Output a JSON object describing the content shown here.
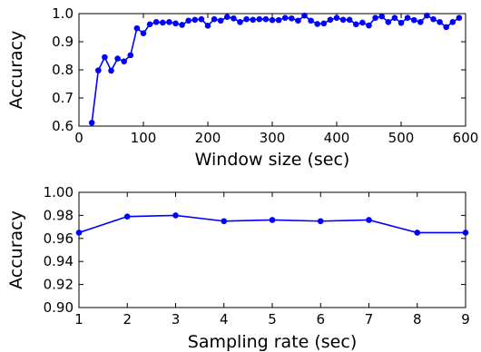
{
  "chart_data": [
    {
      "type": "line",
      "xlabel": "Window size (sec)",
      "ylabel": "Accuracy",
      "xlim": [
        0,
        600
      ],
      "ylim": [
        0.6,
        1.0
      ],
      "xticks": [
        "0",
        "100",
        "200",
        "300",
        "400",
        "500",
        "600"
      ],
      "yticks": [
        "0.6",
        "0.7",
        "0.8",
        "0.9",
        "1.0"
      ],
      "color": "#0000ff",
      "series": [
        {
          "x": [
            20,
            30,
            40,
            50,
            60,
            70,
            80,
            90,
            100,
            110,
            120,
            130,
            140,
            150,
            160,
            170,
            180,
            190,
            200,
            210,
            220,
            230,
            240,
            250,
            260,
            270,
            280,
            290,
            300,
            310,
            320,
            330,
            340,
            350,
            360,
            370,
            380,
            390,
            400,
            410,
            420,
            430,
            440,
            450,
            460,
            470,
            480,
            490,
            500,
            510,
            520,
            530,
            540,
            550,
            560,
            570,
            580,
            590
          ],
          "y": [
            0.612,
            0.798,
            0.845,
            0.797,
            0.84,
            0.83,
            0.852,
            0.948,
            0.93,
            0.962,
            0.97,
            0.968,
            0.97,
            0.965,
            0.96,
            0.975,
            0.978,
            0.98,
            0.957,
            0.98,
            0.975,
            0.988,
            0.983,
            0.97,
            0.98,
            0.978,
            0.98,
            0.98,
            0.977,
            0.977,
            0.985,
            0.983,
            0.975,
            0.993,
            0.975,
            0.963,
            0.965,
            0.978,
            0.985,
            0.978,
            0.978,
            0.962,
            0.968,
            0.958,
            0.985,
            0.99,
            0.97,
            0.985,
            0.967,
            0.985,
            0.977,
            0.97,
            0.993,
            0.98,
            0.97,
            0.952,
            0.97,
            0.985
          ]
        }
      ]
    },
    {
      "type": "line",
      "xlabel": "Sampling rate (sec)",
      "ylabel": "Accuracy",
      "xlim": [
        1,
        9
      ],
      "ylim": [
        0.9,
        1.0
      ],
      "xticks": [
        "1",
        "2",
        "3",
        "4",
        "5",
        "6",
        "7",
        "8",
        "9"
      ],
      "yticks": [
        "0.90",
        "0.92",
        "0.94",
        "0.96",
        "0.98",
        "1.00"
      ],
      "color": "#0000ff",
      "series": [
        {
          "x": [
            1,
            2,
            3,
            4,
            5,
            6,
            7,
            8,
            9
          ],
          "y": [
            0.965,
            0.979,
            0.98,
            0.975,
            0.976,
            0.975,
            0.976,
            0.965,
            0.965
          ]
        }
      ]
    }
  ]
}
